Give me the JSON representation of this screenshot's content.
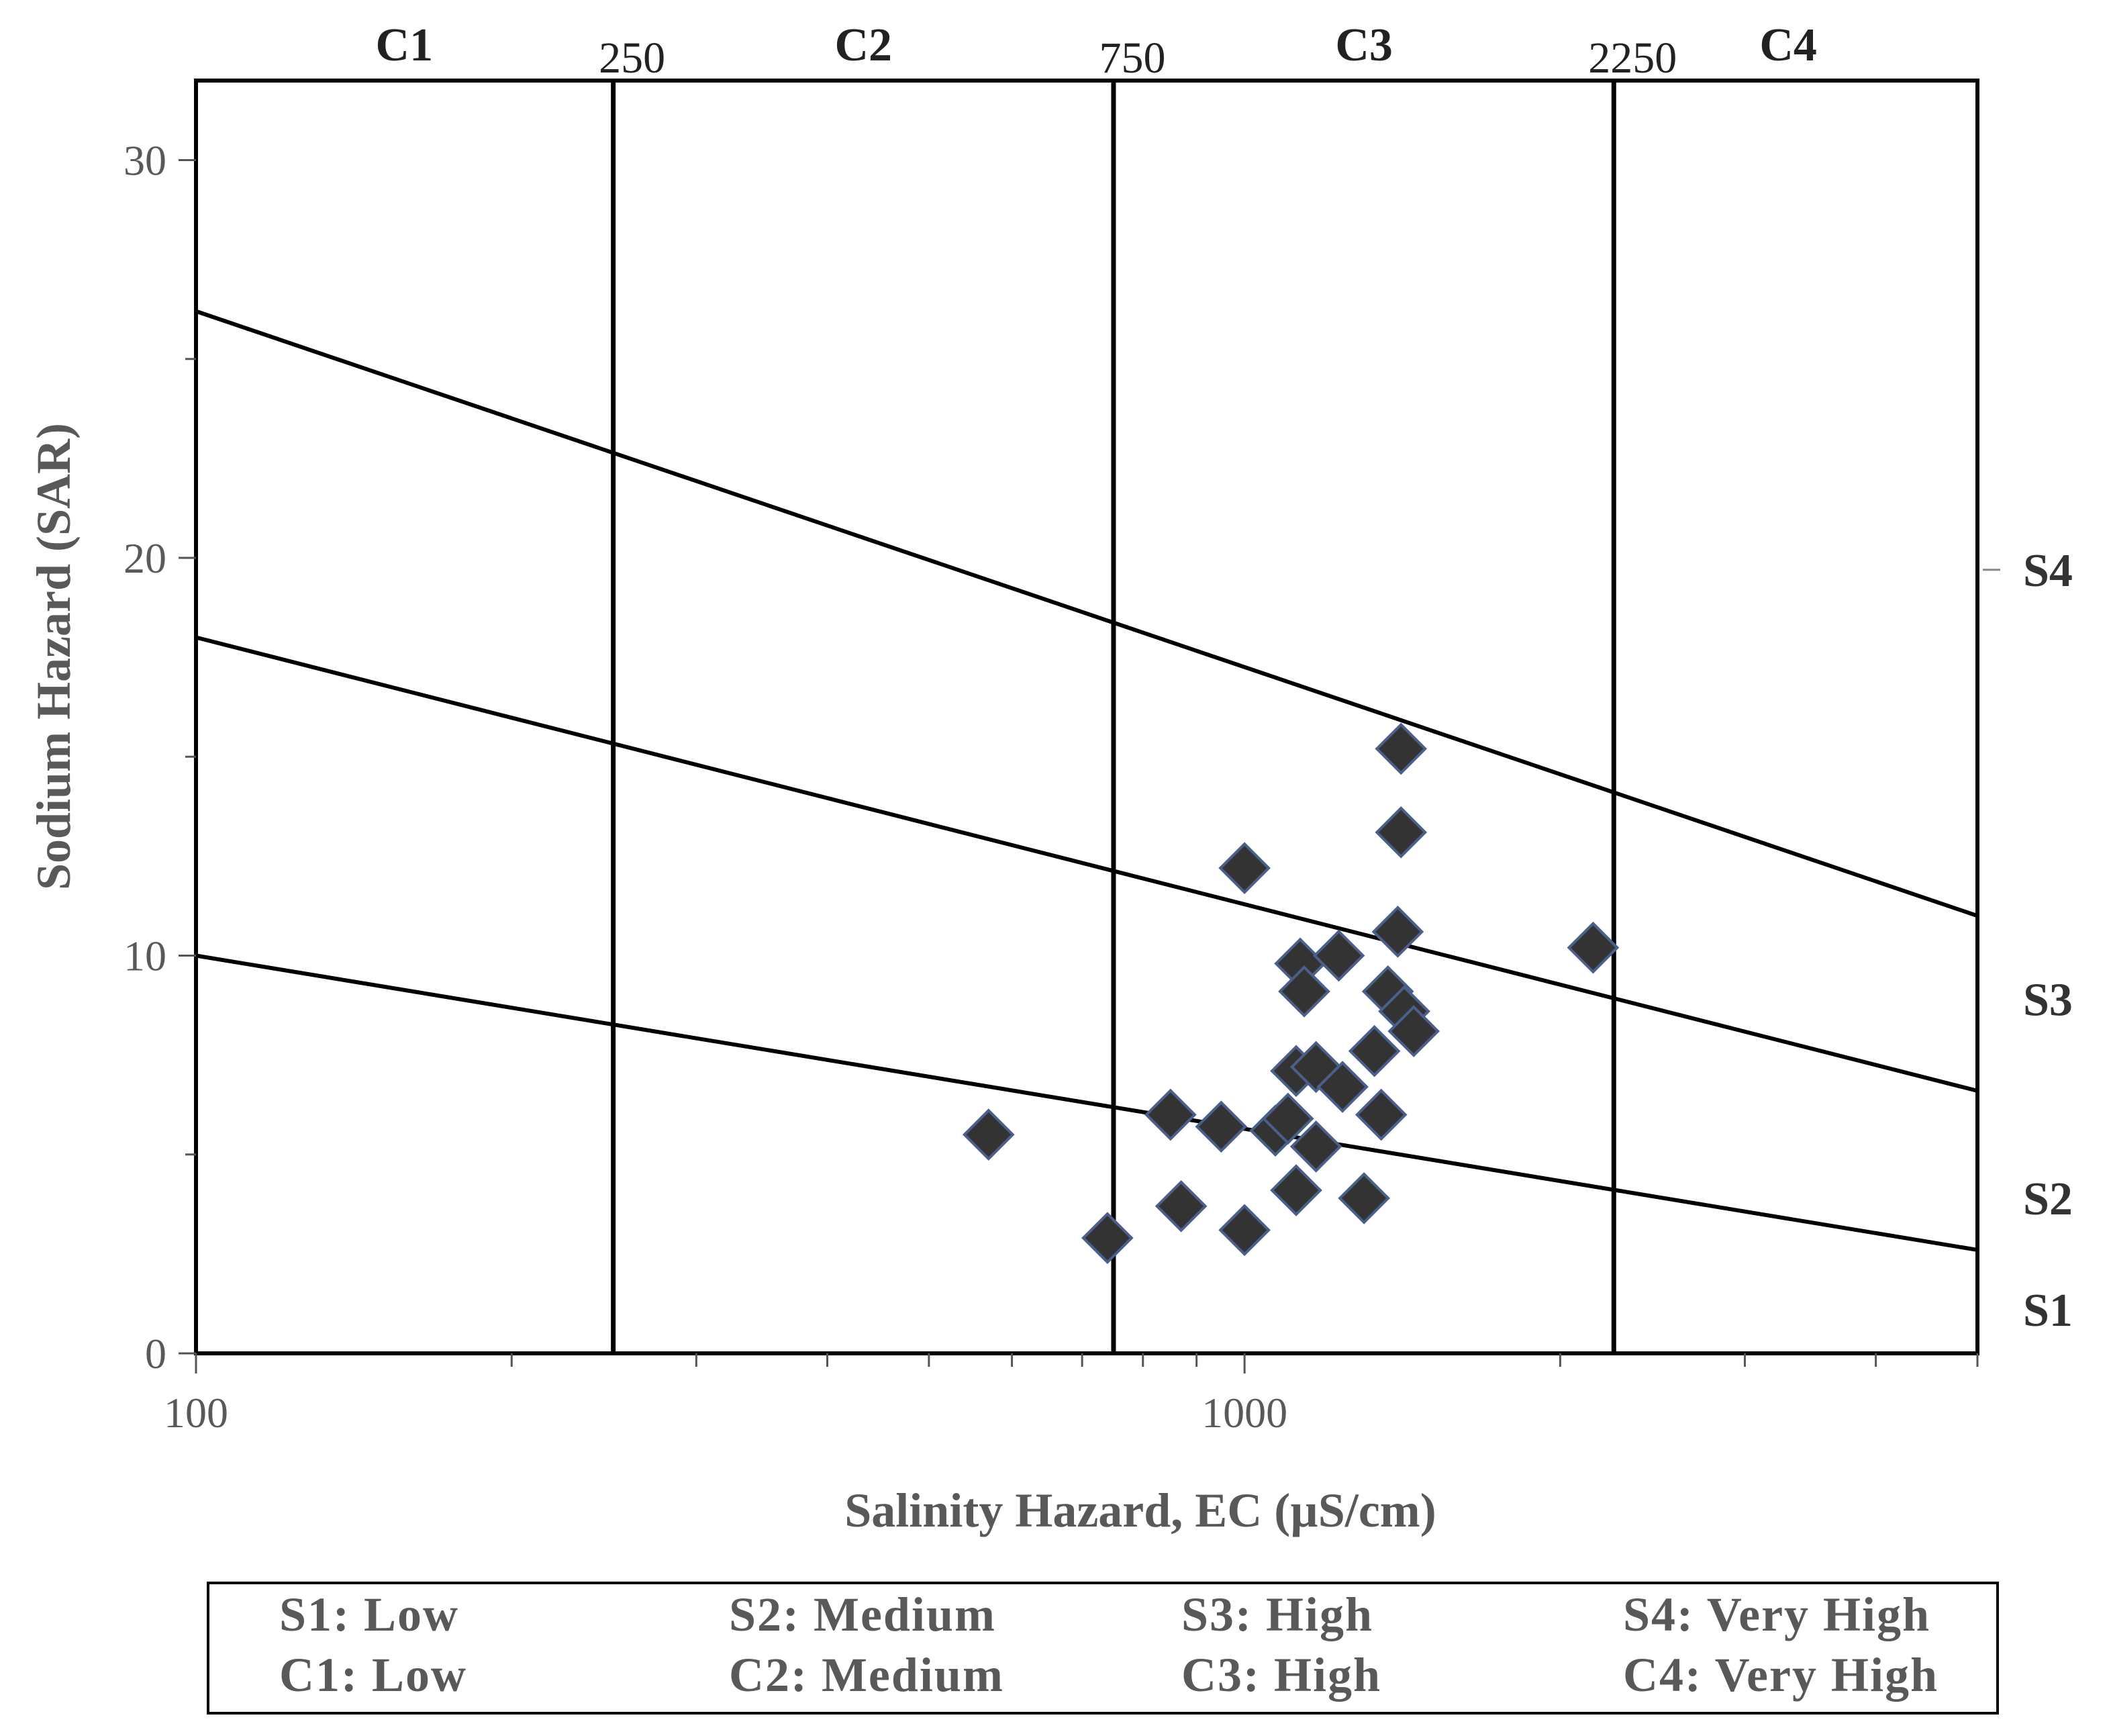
{
  "chart_data": {
    "type": "scatter",
    "title": "",
    "xlabel": "Salinity Hazard,  EC (µS/cm)",
    "ylabel": "Sodium Hazard (SAR)",
    "x_scale": "log",
    "xlim": [
      100,
      5000
    ],
    "ylim": [
      0,
      32
    ],
    "x_ticks": [
      100,
      1000
    ],
    "x_tick_labels": [
      "100",
      "1000"
    ],
    "y_ticks": [
      0,
      10,
      20,
      30
    ],
    "y_tick_labels": [
      "0",
      "10",
      "20",
      "30"
    ],
    "y_minor_ticks": [
      5,
      15,
      25
    ],
    "salinity_boundaries": [
      {
        "value": 250,
        "label": "250"
      },
      {
        "value": 750,
        "label": "750"
      },
      {
        "value": 2250,
        "label": "2250"
      }
    ],
    "salinity_classes": [
      {
        "label": "C1",
        "x": 158
      },
      {
        "label": "C2",
        "x": 433
      },
      {
        "label": "C3",
        "x": 1300
      },
      {
        "label": "C4",
        "x": 3300
      }
    ],
    "sodium_classes": [
      {
        "label": "S4",
        "y": 19.7
      },
      {
        "label": "S3",
        "y": 8.9
      },
      {
        "label": "S2",
        "y": 3.9
      },
      {
        "label": "S1",
        "y": 1.1
      }
    ],
    "hazard_lines": [
      {
        "name": "S1-S2",
        "x": [
          100,
          5000
        ],
        "y": [
          10,
          2.6
        ]
      },
      {
        "name": "S2-S3",
        "x": [
          100,
          5000
        ],
        "y": [
          18,
          6.6
        ]
      },
      {
        "name": "S3-S4",
        "x": [
          100,
          5000
        ],
        "y": [
          26.2,
          11
        ]
      }
    ],
    "series": [
      {
        "name": "Samples",
        "marker": "diamond",
        "color": "#333333",
        "edge_color": "#4a5f8a",
        "points": [
          [
            570,
            5.5
          ],
          [
            740,
            2.9
          ],
          [
            850,
            6.0
          ],
          [
            870,
            3.7
          ],
          [
            950,
            5.7
          ],
          [
            1000,
            12.2
          ],
          [
            1000,
            3.1
          ],
          [
            1070,
            5.6
          ],
          [
            1100,
            5.9
          ],
          [
            1120,
            4.1
          ],
          [
            1120,
            7.1
          ],
          [
            1130,
            9.8
          ],
          [
            1140,
            9.1
          ],
          [
            1170,
            5.2
          ],
          [
            1170,
            7.2
          ],
          [
            1230,
            10.0
          ],
          [
            1240,
            6.7
          ],
          [
            1300,
            3.9
          ],
          [
            1330,
            7.6
          ],
          [
            1350,
            6.0
          ],
          [
            1370,
            9.1
          ],
          [
            1400,
            10.6
          ],
          [
            1410,
            15.2
          ],
          [
            1410,
            13.1
          ],
          [
            1420,
            8.6
          ],
          [
            1450,
            8.1
          ],
          [
            2150,
            10.2
          ]
        ]
      }
    ]
  },
  "legend": {
    "rows": [
      [
        "S1: Low",
        "S2: Medium",
        "S3: High",
        "S4: Very High"
      ],
      [
        "C1: Low",
        "C2: Medium",
        "C3: High",
        "C4: Very High"
      ]
    ]
  }
}
